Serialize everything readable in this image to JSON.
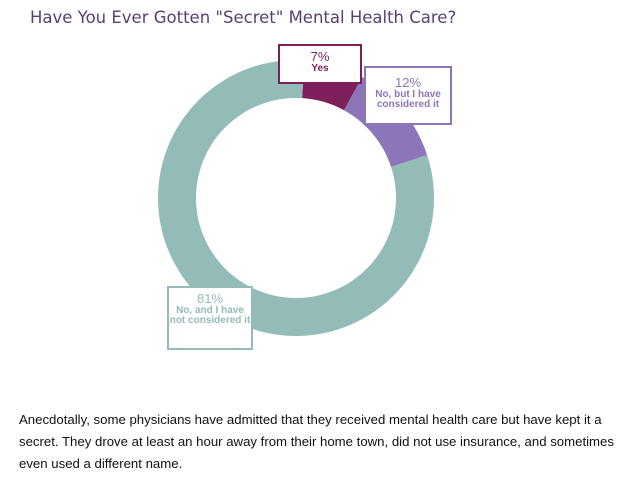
{
  "title": "Have You Ever Gotten \"Secret\" Mental Health Care?",
  "chart_data": {
    "type": "pie",
    "title": "Have You Ever Gotten \"Secret\" Mental Health Care?",
    "categories": [
      "Yes",
      "No, but I have considered it",
      "No, and I have not considered it"
    ],
    "values": [
      7,
      12,
      81
    ],
    "unit": "%",
    "value_labels": [
      "7%",
      "12%",
      "81%"
    ],
    "colors": [
      "#7d1f58",
      "#8c75b8",
      "#93bbb7"
    ],
    "legend": "none"
  },
  "body_text": "Anecdotally, some physicians have admitted that they received mental health care but have kept it a secret. They drove at least an hour away from their home town, did not use insurance, and sometimes even used a different name."
}
